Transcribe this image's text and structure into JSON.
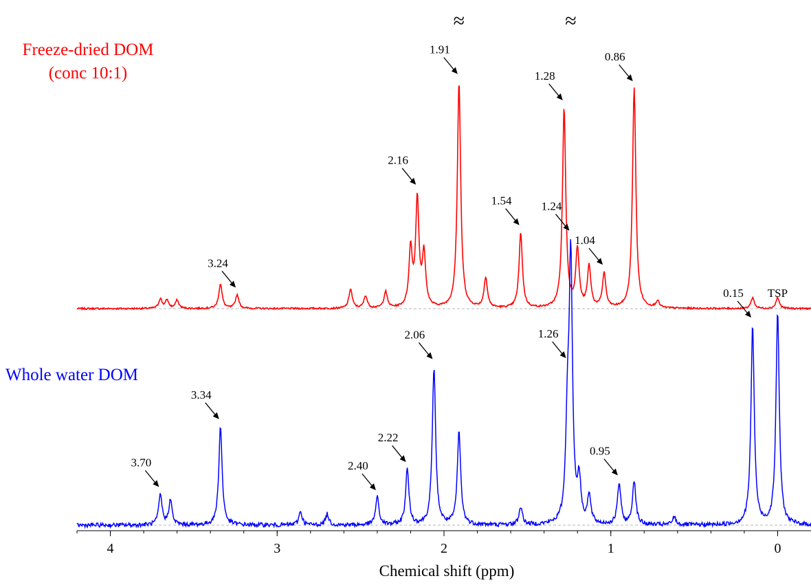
{
  "chart_data": {
    "type": "line",
    "xlabel": "Chemical shift (ppm)",
    "ylabel": "",
    "xlim": [
      4.2,
      -0.2
    ],
    "x_reversed": true,
    "xticks": [
      4,
      3,
      2,
      1,
      0
    ],
    "grid": false,
    "break_marker": "≈",
    "series": [
      {
        "name": "Freeze-dried DOM",
        "subtitle": "(conc 10:1)",
        "color": "#ff0000",
        "peaks": [
          {
            "ppm": 3.7,
            "h": 0.07
          },
          {
            "ppm": 3.66,
            "h": 0.06
          },
          {
            "ppm": 3.6,
            "h": 0.06
          },
          {
            "ppm": 3.34,
            "h": 0.18
          },
          {
            "ppm": 3.24,
            "h": 0.1
          },
          {
            "ppm": 2.56,
            "h": 0.14
          },
          {
            "ppm": 2.47,
            "h": 0.09
          },
          {
            "ppm": 2.35,
            "h": 0.12
          },
          {
            "ppm": 2.2,
            "h": 0.42
          },
          {
            "ppm": 2.16,
            "h": 0.78
          },
          {
            "ppm": 2.12,
            "h": 0.38
          },
          {
            "ppm": 1.91,
            "h": 1.65
          },
          {
            "ppm": 1.75,
            "h": 0.22
          },
          {
            "ppm": 1.54,
            "h": 0.55
          },
          {
            "ppm": 1.28,
            "h": 1.45
          },
          {
            "ppm": 1.2,
            "h": 0.42
          },
          {
            "ppm": 1.13,
            "h": 0.3
          },
          {
            "ppm": 1.04,
            "h": 0.25
          },
          {
            "ppm": 0.86,
            "h": 1.6
          },
          {
            "ppm": 0.72,
            "h": 0.05
          },
          {
            "ppm": 0.15,
            "h": 0.08
          },
          {
            "ppm": 0.0,
            "h": 0.08
          }
        ],
        "labels": [
          {
            "ppm": 3.24,
            "text": "3.24"
          },
          {
            "ppm": 2.16,
            "text": "2.16"
          },
          {
            "ppm": 1.91,
            "text": "1.91"
          },
          {
            "ppm": 1.54,
            "text": "1.54"
          },
          {
            "ppm": 1.28,
            "text": "1.28"
          },
          {
            "ppm": 1.04,
            "text": "1.04"
          },
          {
            "ppm": 0.86,
            "text": "0.86"
          }
        ],
        "broken_peak_ppm": 1.91
      },
      {
        "name": "Whole water DOM",
        "color": "#0000ff",
        "peaks": [
          {
            "ppm": 3.7,
            "h": 0.22
          },
          {
            "ppm": 3.64,
            "h": 0.18
          },
          {
            "ppm": 3.34,
            "h": 0.72
          },
          {
            "ppm": 2.86,
            "h": 0.1
          },
          {
            "ppm": 2.7,
            "h": 0.08
          },
          {
            "ppm": 2.4,
            "h": 0.2
          },
          {
            "ppm": 2.22,
            "h": 0.4
          },
          {
            "ppm": 2.06,
            "h": 1.15
          },
          {
            "ppm": 1.91,
            "h": 0.68
          },
          {
            "ppm": 1.54,
            "h": 0.13
          },
          {
            "ppm": 1.26,
            "h": 0.65
          },
          {
            "ppm": 1.24,
            "h": 1.9
          },
          {
            "ppm": 1.19,
            "h": 0.3
          },
          {
            "ppm": 1.13,
            "h": 0.2
          },
          {
            "ppm": 0.95,
            "h": 0.3
          },
          {
            "ppm": 0.86,
            "h": 0.32
          },
          {
            "ppm": 0.62,
            "h": 0.06
          },
          {
            "ppm": 0.15,
            "h": 1.45
          },
          {
            "ppm": 0.0,
            "h": 1.55
          }
        ],
        "labels": [
          {
            "ppm": 3.7,
            "text": "3.70"
          },
          {
            "ppm": 3.34,
            "text": "3.34"
          },
          {
            "ppm": 2.4,
            "text": "2.40"
          },
          {
            "ppm": 2.22,
            "text": "2.22"
          },
          {
            "ppm": 2.06,
            "text": "2.06"
          },
          {
            "ppm": 1.26,
            "text": "1.26"
          },
          {
            "ppm": 1.24,
            "text": "1.24"
          },
          {
            "ppm": 0.95,
            "text": "0.95"
          },
          {
            "ppm": 0.15,
            "text": "0.15"
          },
          {
            "ppm": 0.0,
            "text": "TSP"
          }
        ],
        "broken_peak_ppm": 1.24
      }
    ]
  }
}
